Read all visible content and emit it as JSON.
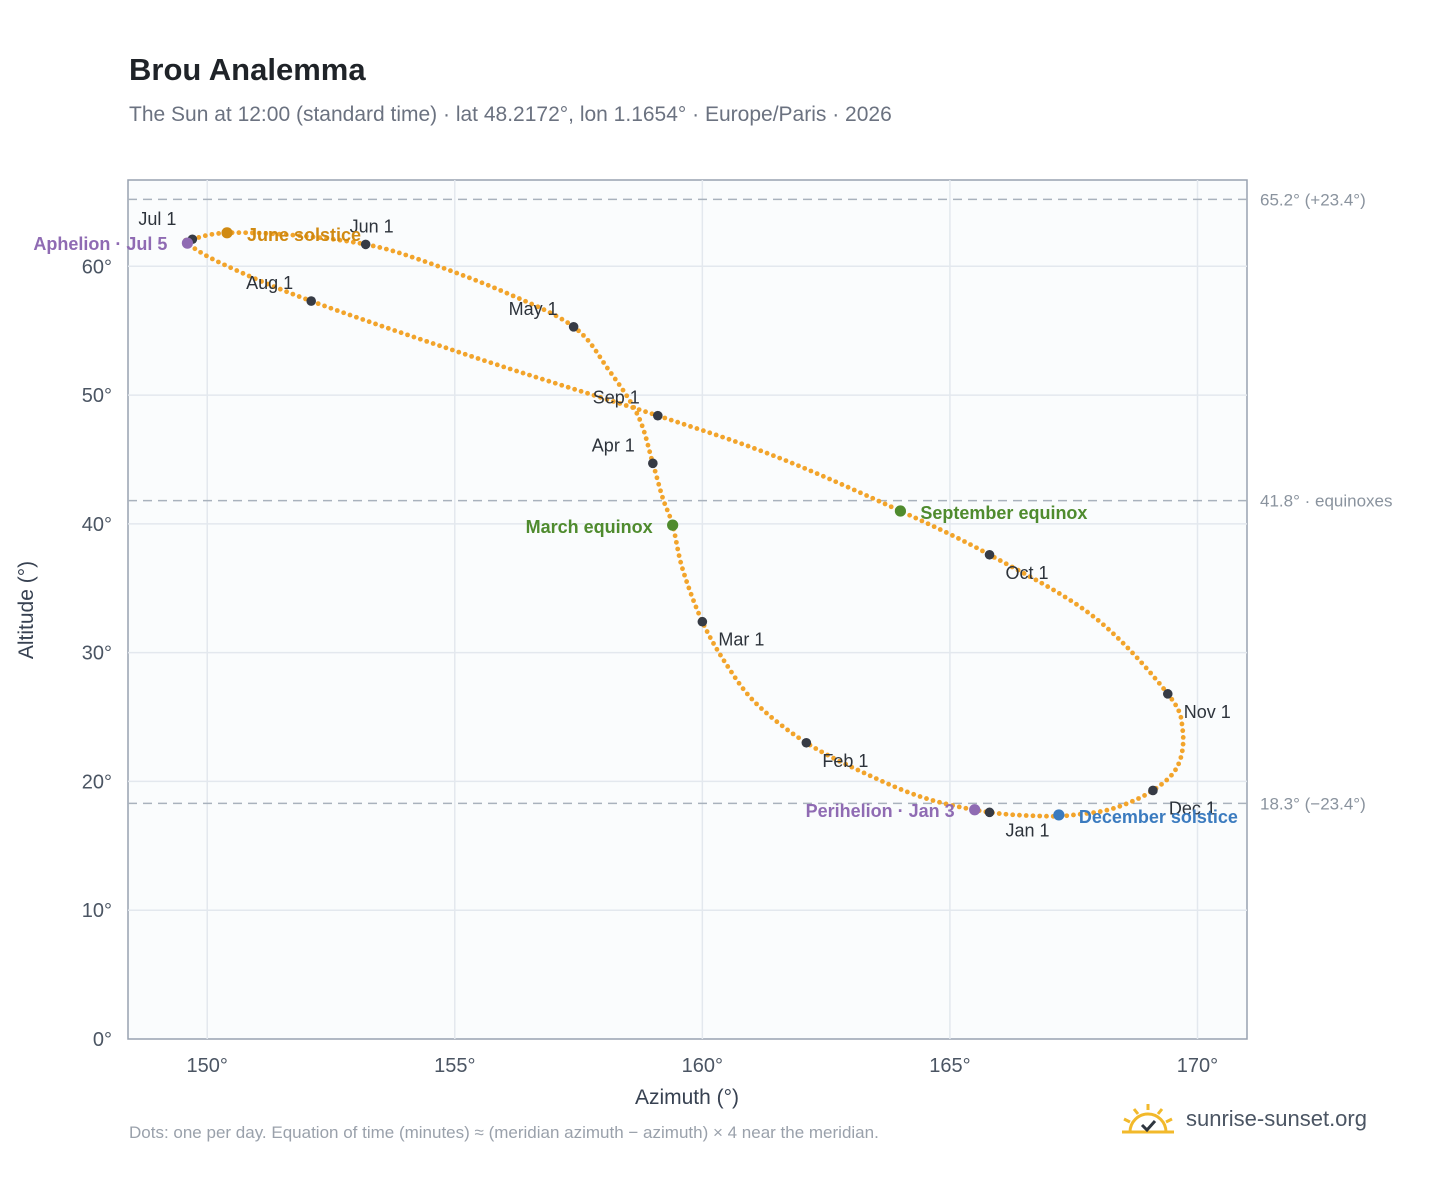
{
  "header": {
    "title": "Brou Analemma",
    "subtitle": "The Sun at 12:00 (standard time) · lat 48.2172°, lon 1.1654° · Europe/Paris · 2026"
  },
  "footer": {
    "note": "Dots: one per day. Equation of time (minutes) ≈ (meridian azimuth − azimuth) × 4 near the meridian.",
    "brand": "sunrise-sunset.org"
  },
  "colors": {
    "curve": "#f2a42b",
    "month": "#363b45",
    "solstice_june": "#d08a12",
    "solstice_december": "#3b7bbf",
    "equinox": "#4f8b2e",
    "apsis": "#8f6bb3",
    "reference": "#a9b2bd",
    "plot_bg": "#fafcfd"
  },
  "chart_data": {
    "type": "scatter",
    "xlabel": "Azimuth (°)",
    "ylabel": "Altitude (°)",
    "xlim": [
      148.4,
      171.0
    ],
    "ylim": [
      0,
      66.7
    ],
    "x_ticks": [
      150,
      155,
      160,
      165,
      170
    ],
    "x_tick_labels": [
      "150°",
      "155°",
      "160°",
      "165°",
      "170°"
    ],
    "y_ticks": [
      0,
      10,
      20,
      30,
      40,
      50,
      60
    ],
    "y_tick_labels": [
      "0°",
      "10°",
      "20°",
      "30°",
      "40°",
      "50°",
      "60°"
    ],
    "grid": true,
    "reference_lines": [
      {
        "y": 65.2,
        "label": "65.2° (+23.4°)"
      },
      {
        "y": 41.8,
        "label": "41.8° · equinoxes"
      },
      {
        "y": 18.3,
        "label": "18.3° (−23.4°)"
      }
    ],
    "month_markers": [
      {
        "label": "Jan 1",
        "az": 165.8,
        "alt": 17.6
      },
      {
        "label": "Feb 1",
        "az": 162.1,
        "alt": 23.0
      },
      {
        "label": "Mar 1",
        "az": 160.0,
        "alt": 32.4
      },
      {
        "label": "Apr 1",
        "az": 159.0,
        "alt": 44.7
      },
      {
        "label": "May 1",
        "az": 157.4,
        "alt": 55.3
      },
      {
        "label": "Jun 1",
        "az": 153.2,
        "alt": 61.7
      },
      {
        "label": "Jul 1",
        "az": 149.7,
        "alt": 62.1
      },
      {
        "label": "Aug 1",
        "az": 152.1,
        "alt": 57.3
      },
      {
        "label": "Sep 1",
        "az": 159.1,
        "alt": 48.4
      },
      {
        "label": "Oct 1",
        "az": 165.8,
        "alt": 37.6
      },
      {
        "label": "Nov 1",
        "az": 169.4,
        "alt": 26.8
      },
      {
        "label": "Dec 1",
        "az": 169.1,
        "alt": 19.3
      }
    ],
    "events": [
      {
        "label": "Aphelion · Jul 5",
        "az": 149.6,
        "alt": 61.8,
        "kind": "apsis"
      },
      {
        "label": "June solstice",
        "az": 150.4,
        "alt": 62.6,
        "kind": "solstice_june"
      },
      {
        "label": "March equinox",
        "az": 159.4,
        "alt": 39.9,
        "kind": "equinox"
      },
      {
        "label": "September equinox",
        "az": 164.0,
        "alt": 41.0,
        "kind": "equinox"
      },
      {
        "label": "Perihelion · Jan 3",
        "az": 165.5,
        "alt": 17.8,
        "kind": "apsis"
      },
      {
        "label": "December solstice",
        "az": 167.2,
        "alt": 17.4,
        "kind": "solstice_december"
      }
    ],
    "path_keypoints": [
      [
        166.95,
        17.3
      ],
      [
        165.8,
        17.6
      ],
      [
        164.5,
        18.7
      ],
      [
        163.3,
        20.6
      ],
      [
        162.1,
        23.0
      ],
      [
        161.1,
        26.0
      ],
      [
        160.5,
        29.0
      ],
      [
        160.0,
        32.4
      ],
      [
        159.6,
        36.5
      ],
      [
        159.4,
        39.9
      ],
      [
        159.2,
        42.0
      ],
      [
        159.0,
        44.7
      ],
      [
        158.7,
        48.4
      ],
      [
        158.1,
        52.0
      ],
      [
        157.4,
        55.3
      ],
      [
        156.0,
        58.0
      ],
      [
        154.3,
        60.5
      ],
      [
        153.2,
        61.7
      ],
      [
        151.8,
        62.4
      ],
      [
        150.4,
        62.6
      ],
      [
        149.7,
        62.1
      ],
      [
        149.6,
        61.8
      ],
      [
        150.3,
        60.2
      ],
      [
        152.1,
        57.3
      ],
      [
        155.5,
        52.8
      ],
      [
        159.1,
        48.4
      ],
      [
        161.5,
        45.2
      ],
      [
        164.0,
        41.0
      ],
      [
        165.8,
        37.6
      ],
      [
        167.9,
        32.8
      ],
      [
        169.4,
        26.8
      ],
      [
        169.7,
        24.0
      ],
      [
        169.6,
        21.2
      ],
      [
        169.1,
        19.3
      ],
      [
        168.3,
        17.9
      ],
      [
        167.5,
        17.4
      ],
      [
        166.95,
        17.3
      ]
    ]
  }
}
